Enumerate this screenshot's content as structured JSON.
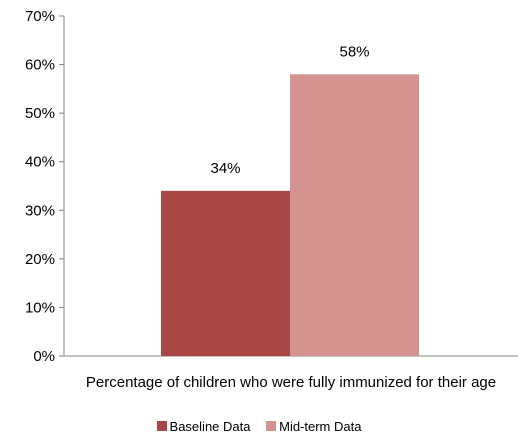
{
  "chart_data": {
    "type": "bar",
    "categories": [
      "Percentage of children who were fully immunized for their age"
    ],
    "series": [
      {
        "name": "Baseline Data",
        "values": [
          34
        ],
        "color": "#A94744",
        "label": "34%"
      },
      {
        "name": "Mid-term Data",
        "values": [
          58
        ],
        "color": "#D49290",
        "label": "58%"
      }
    ],
    "ylim": [
      0,
      70
    ],
    "yticks": [
      "0%",
      "10%",
      "20%",
      "30%",
      "40%",
      "50%",
      "60%",
      "70%"
    ],
    "grid": false,
    "legend": "bottom"
  }
}
